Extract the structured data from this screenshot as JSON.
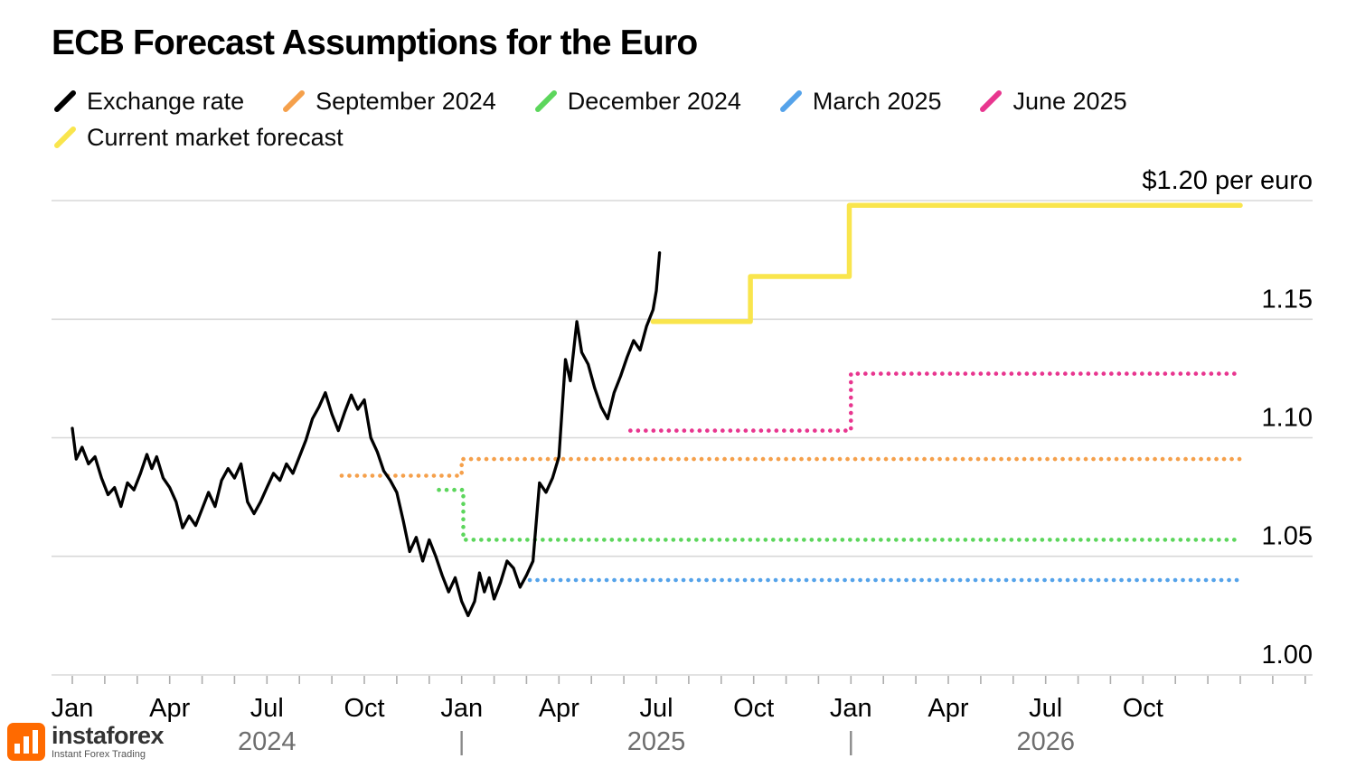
{
  "chart_data": {
    "type": "line",
    "title": "ECB Forecast Assumptions for the Euro",
    "x_unit": "months since Jan 2024",
    "x_domain": [
      0,
      36
    ],
    "ylim": [
      0.995,
      1.205
    ],
    "grid": true,
    "legend_position": "top-left",
    "y_ticks": [
      {
        "value": 1.2,
        "label": "$1.20 per euro"
      },
      {
        "value": 1.15,
        "label": "1.15"
      },
      {
        "value": 1.1,
        "label": "1.10"
      },
      {
        "value": 1.05,
        "label": "1.05"
      },
      {
        "value": 1.0,
        "label": "1.00"
      }
    ],
    "x_ticks": [
      {
        "month": 0,
        "label": "Jan"
      },
      {
        "month": 3,
        "label": "Apr"
      },
      {
        "month": 6,
        "label": "Jul"
      },
      {
        "month": 9,
        "label": "Oct"
      },
      {
        "month": 12,
        "label": "Jan"
      },
      {
        "month": 15,
        "label": "Apr"
      },
      {
        "month": 18,
        "label": "Jul"
      },
      {
        "month": 21,
        "label": "Oct"
      },
      {
        "month": 24,
        "label": "Jan"
      },
      {
        "month": 27,
        "label": "Apr"
      },
      {
        "month": 30,
        "label": "Jul"
      },
      {
        "month": 33,
        "label": "Oct"
      }
    ],
    "year_labels": [
      {
        "label": "2024",
        "month": 6
      },
      {
        "label": "2025",
        "month": 18
      },
      {
        "label": "2026",
        "month": 30
      }
    ],
    "year_separator_glyph": "|",
    "year_separator_months": [
      12,
      24
    ],
    "legend": {
      "items": [
        {
          "label": "Exchange rate",
          "color": "#000000",
          "row": 0
        },
        {
          "label": "September 2024",
          "color": "#f5a04b",
          "row": 0
        },
        {
          "label": "December 2024",
          "color": "#5cd65c",
          "row": 0
        },
        {
          "label": "March 2025",
          "color": "#55a3ea",
          "row": 0
        },
        {
          "label": "June 2025",
          "color": "#e8368f",
          "row": 0
        },
        {
          "label": "Current market forecast",
          "color": "#f9e54d",
          "row": 1
        }
      ]
    },
    "series": [
      {
        "name": "September 2024",
        "color": "#f5a04b",
        "style": "dotted",
        "width": 4.6,
        "segments": [
          {
            "from": 8.3,
            "to": 12,
            "value": 1.084
          },
          {
            "from": 12,
            "to": 36,
            "value": 1.091
          }
        ]
      },
      {
        "name": "December 2024",
        "color": "#5cd65c",
        "style": "dotted",
        "width": 4.6,
        "segments": [
          {
            "from": 11.3,
            "to": 12.05,
            "value": 1.078
          },
          {
            "from": 12.05,
            "to": 36,
            "value": 1.057
          }
        ]
      },
      {
        "name": "March 2025",
        "color": "#55a3ea",
        "style": "dotted",
        "width": 4.6,
        "segments": [
          {
            "from": 14.1,
            "to": 36,
            "value": 1.04
          }
        ]
      },
      {
        "name": "June 2025",
        "color": "#e8368f",
        "style": "dotted",
        "width": 4.6,
        "segments": [
          {
            "from": 17.2,
            "to": 24,
            "value": 1.103
          },
          {
            "from": 24,
            "to": 36,
            "value": 1.127
          }
        ]
      },
      {
        "name": "Current market forecast",
        "color": "#f9e54d",
        "style": "solid",
        "width": 5.5,
        "segments": [
          {
            "from": 17.9,
            "to": 20.9,
            "value": 1.149
          },
          {
            "from": 20.9,
            "to": 23.95,
            "value": 1.168
          },
          {
            "from": 23.95,
            "to": 36,
            "value": 1.198
          }
        ]
      },
      {
        "name": "Exchange rate",
        "color": "#000000",
        "style": "solid",
        "width": 3.3,
        "points": [
          [
            0,
            1.104
          ],
          [
            0.12,
            1.091
          ],
          [
            0.3,
            1.096
          ],
          [
            0.5,
            1.089
          ],
          [
            0.7,
            1.092
          ],
          [
            0.9,
            1.083
          ],
          [
            1.1,
            1.076
          ],
          [
            1.3,
            1.079
          ],
          [
            1.5,
            1.071
          ],
          [
            1.7,
            1.081
          ],
          [
            1.9,
            1.078
          ],
          [
            2.1,
            1.085
          ],
          [
            2.3,
            1.093
          ],
          [
            2.45,
            1.087
          ],
          [
            2.6,
            1.092
          ],
          [
            2.8,
            1.083
          ],
          [
            3.0,
            1.079
          ],
          [
            3.2,
            1.073
          ],
          [
            3.4,
            1.062
          ],
          [
            3.6,
            1.067
          ],
          [
            3.8,
            1.063
          ],
          [
            4.0,
            1.07
          ],
          [
            4.2,
            1.077
          ],
          [
            4.4,
            1.071
          ],
          [
            4.6,
            1.082
          ],
          [
            4.8,
            1.087
          ],
          [
            5.0,
            1.083
          ],
          [
            5.2,
            1.089
          ],
          [
            5.4,
            1.073
          ],
          [
            5.6,
            1.068
          ],
          [
            5.8,
            1.073
          ],
          [
            6.0,
            1.079
          ],
          [
            6.2,
            1.085
          ],
          [
            6.4,
            1.082
          ],
          [
            6.6,
            1.089
          ],
          [
            6.8,
            1.085
          ],
          [
            7.0,
            1.092
          ],
          [
            7.2,
            1.099
          ],
          [
            7.4,
            1.108
          ],
          [
            7.6,
            1.113
          ],
          [
            7.8,
            1.119
          ],
          [
            8.0,
            1.11
          ],
          [
            8.2,
            1.103
          ],
          [
            8.4,
            1.111
          ],
          [
            8.6,
            1.118
          ],
          [
            8.8,
            1.112
          ],
          [
            9.0,
            1.116
          ],
          [
            9.2,
            1.1
          ],
          [
            9.4,
            1.094
          ],
          [
            9.6,
            1.086
          ],
          [
            9.8,
            1.082
          ],
          [
            10.0,
            1.077
          ],
          [
            10.2,
            1.065
          ],
          [
            10.4,
            1.052
          ],
          [
            10.6,
            1.058
          ],
          [
            10.8,
            1.048
          ],
          [
            11.0,
            1.057
          ],
          [
            11.2,
            1.05
          ],
          [
            11.4,
            1.042
          ],
          [
            11.6,
            1.035
          ],
          [
            11.8,
            1.041
          ],
          [
            12.0,
            1.031
          ],
          [
            12.2,
            1.025
          ],
          [
            12.4,
            1.031
          ],
          [
            12.55,
            1.043
          ],
          [
            12.7,
            1.035
          ],
          [
            12.85,
            1.041
          ],
          [
            13.0,
            1.032
          ],
          [
            13.2,
            1.039
          ],
          [
            13.4,
            1.048
          ],
          [
            13.6,
            1.045
          ],
          [
            13.8,
            1.037
          ],
          [
            14.0,
            1.042
          ],
          [
            14.2,
            1.048
          ],
          [
            14.4,
            1.081
          ],
          [
            14.6,
            1.077
          ],
          [
            14.8,
            1.083
          ],
          [
            15.0,
            1.092
          ],
          [
            15.2,
            1.133
          ],
          [
            15.35,
            1.124
          ],
          [
            15.55,
            1.149
          ],
          [
            15.7,
            1.136
          ],
          [
            15.9,
            1.131
          ],
          [
            16.1,
            1.121
          ],
          [
            16.3,
            1.113
          ],
          [
            16.5,
            1.108
          ],
          [
            16.7,
            1.119
          ],
          [
            16.9,
            1.126
          ],
          [
            17.1,
            1.134
          ],
          [
            17.3,
            1.141
          ],
          [
            17.5,
            1.137
          ],
          [
            17.7,
            1.147
          ],
          [
            17.9,
            1.154
          ],
          [
            18.0,
            1.162
          ],
          [
            18.1,
            1.178
          ]
        ]
      }
    ]
  },
  "watermark": {
    "brand": "instaforex",
    "tagline": "Instant Forex Trading",
    "logo_color": "#ff6a00"
  }
}
